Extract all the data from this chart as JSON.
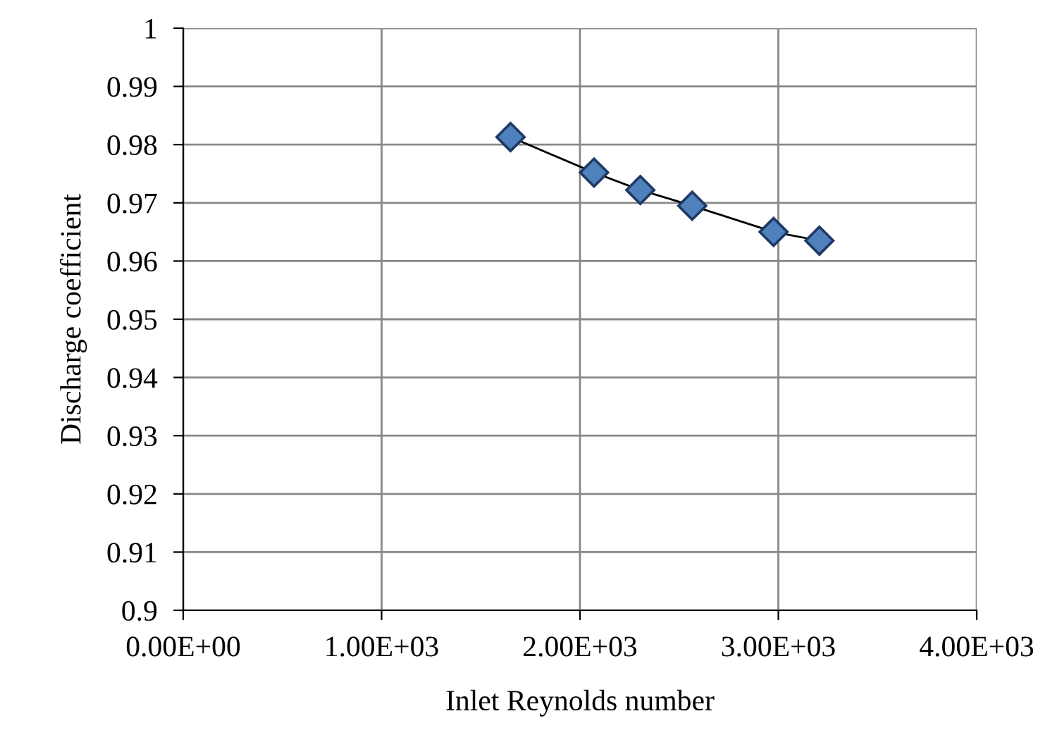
{
  "chart_data": {
    "type": "line",
    "xlabel": "Inlet Reynolds number",
    "ylabel": "Discharge coefficient",
    "x": [
      1650,
      2071,
      2304,
      2566,
      2976,
      3207
    ],
    "series": [
      {
        "color": "#4f81bd",
        "values": [
          0.9813,
          0.9752,
          0.9722,
          0.9695,
          0.965,
          0.9635
        ]
      }
    ],
    "xlim": [
      0,
      4000
    ],
    "xticks": [
      {
        "value": 0,
        "label": "0.00E+00"
      },
      {
        "value": 1000,
        "label": "1.00E+03"
      },
      {
        "value": 2000,
        "label": "2.00E+03"
      },
      {
        "value": 3000,
        "label": "3.00E+03"
      },
      {
        "value": 4000,
        "label": "4.00E+03"
      }
    ],
    "ylim": [
      0.9,
      1
    ],
    "yticks": [
      0.9,
      0.91,
      0.92,
      0.93,
      0.94,
      0.95,
      0.96,
      0.97,
      0.98,
      0.99,
      1
    ],
    "grid": true,
    "marker": "diamond",
    "line_style": "solid"
  }
}
